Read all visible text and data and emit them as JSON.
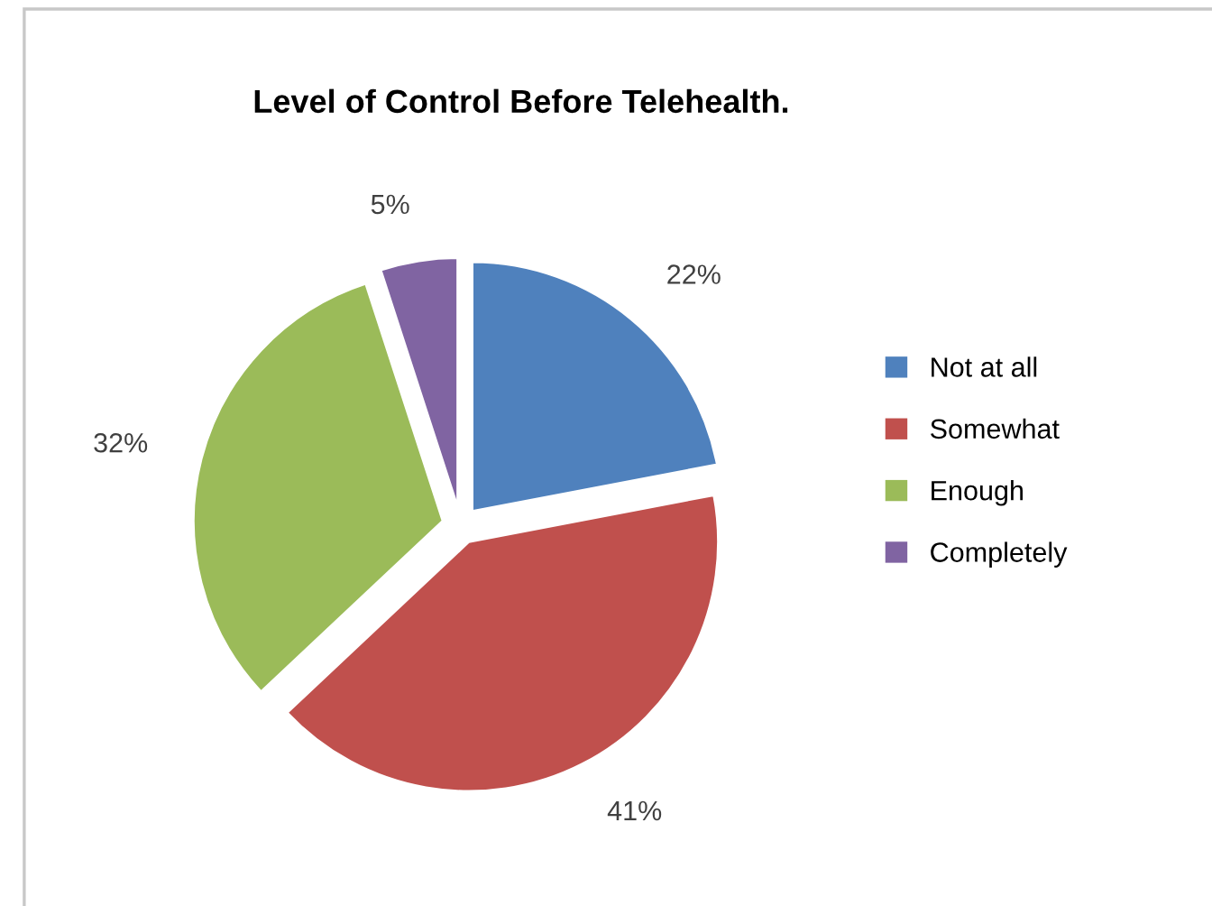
{
  "chart_data": {
    "type": "pie",
    "title": "Level of Control Before Telehealth.",
    "categories": [
      "Not at all",
      "Somewhat",
      "Enough",
      "Completely"
    ],
    "values": [
      22,
      41,
      32,
      5
    ],
    "value_labels": [
      "22%",
      "41%",
      "32%",
      "5%"
    ],
    "colors": [
      "#4f81bd",
      "#c0504d",
      "#9bbb59",
      "#8064a2"
    ],
    "legend": "right"
  }
}
